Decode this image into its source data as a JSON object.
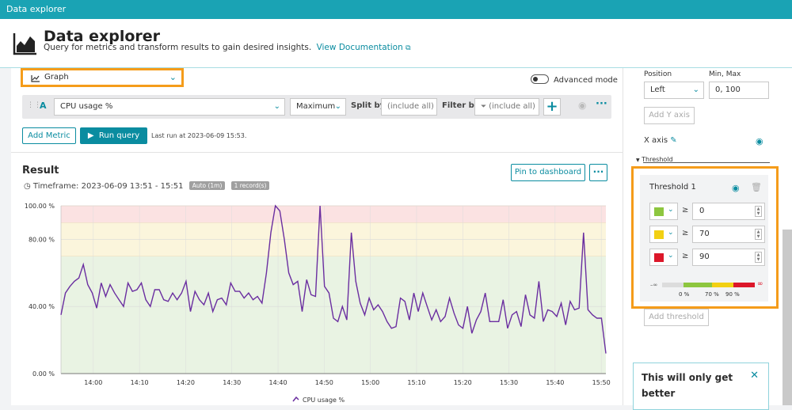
{
  "window": {
    "title": "Data explorer"
  },
  "header": {
    "title": "Data explorer",
    "subtitle": "Query for metrics and transform results to gain desired insights.",
    "doc_link": "View Documentation"
  },
  "visualization": {
    "selected": "Graph"
  },
  "advanced_mode": {
    "label": "Advanced mode",
    "enabled": false
  },
  "query": {
    "letter": "A",
    "metric": "CPU usage %",
    "aggregation": "Maximum",
    "split_by_label": "Split by",
    "split_by_placeholder": "(include all)",
    "filter_by_label": "Filter by",
    "filter_by_placeholder": "(include all)"
  },
  "actions": {
    "add_metric": "Add Metric",
    "run_query": "Run query",
    "last_run": "Last run at 2023-06-09 15:53."
  },
  "result": {
    "title": "Result",
    "timeframe": "Timeframe: 2023-06-09 13:51 - 15:51",
    "tag_resolution": "Auto (1m)",
    "tag_records": "1 record(s)",
    "pin_button": "Pin to dashboard",
    "more_button": "···"
  },
  "chart_data": {
    "type": "line",
    "title": "",
    "xlabel": "",
    "ylabel": "",
    "ylim": [
      0,
      100
    ],
    "ytick_labels": [
      "100.00 %",
      "80.00 %",
      "40.00 %",
      "0.00 %"
    ],
    "ytick_values": [
      100,
      80,
      40,
      0
    ],
    "x_start_min": 833,
    "x_end_min": 951,
    "xtick_labels": [
      "14:00",
      "14:10",
      "14:20",
      "14:30",
      "14:40",
      "14:50",
      "15:00",
      "15:10",
      "15:20",
      "15:30",
      "15:40",
      "15:50"
    ],
    "xtick_values": [
      840,
      850,
      860,
      870,
      880,
      890,
      900,
      910,
      920,
      930,
      940,
      950
    ],
    "threshold_bands": [
      {
        "from": 0,
        "to": 70,
        "color": "#e9f3e3"
      },
      {
        "from": 70,
        "to": 90,
        "color": "#fbf5dc"
      },
      {
        "from": 90,
        "to": 100,
        "color": "#fbe2e2"
      }
    ],
    "series": [
      {
        "name": "CPU usage %",
        "color": "#6a2ea0",
        "values": [
          35,
          48,
          52,
          55,
          57,
          65,
          53,
          48,
          39,
          54,
          46,
          53,
          48,
          44,
          40,
          54,
          49,
          50,
          54,
          44,
          40,
          50,
          50,
          44,
          43,
          48,
          44,
          48,
          55,
          37,
          49,
          44,
          41,
          48,
          37,
          44,
          45,
          41,
          54,
          49,
          49,
          45,
          48,
          44,
          46,
          42,
          60,
          84,
          100,
          97,
          80,
          60,
          53,
          55,
          37,
          56,
          47,
          46,
          100,
          52,
          48,
          33,
          31,
          40,
          32,
          84,
          55,
          42,
          35,
          45,
          38,
          41,
          37,
          31,
          27,
          28,
          45,
          43,
          32,
          48,
          37,
          48,
          40,
          32,
          38,
          31,
          34,
          45,
          36,
          29,
          27,
          40,
          24,
          32,
          37,
          48,
          31,
          31,
          31,
          44,
          27,
          35,
          37,
          28,
          47,
          35,
          33,
          55,
          31,
          38,
          37,
          34,
          42,
          29,
          43,
          38,
          39,
          84,
          38,
          35,
          33,
          33,
          12
        ]
      }
    ],
    "legend": "bottom-center",
    "grid": true
  },
  "sidebar": {
    "position_label": "Position",
    "position_value": "Left",
    "minmax_label": "Min, Max",
    "minmax_value": "0, 100",
    "add_y_axis": "Add Y axis",
    "x_axis_label": "X axis",
    "threshold_section": "Threshold",
    "threshold_title": "Threshold 1",
    "thresholds": [
      {
        "color": "#8dc63f",
        "value": "0"
      },
      {
        "color": "#f2d013",
        "value": "70"
      },
      {
        "color": "#dc172a",
        "value": "90"
      }
    ],
    "scale_labels": {
      "neg_inf": "–∞",
      "pos_inf": "∞",
      "zero": "0 %",
      "seventy": "70 %",
      "ninety": "90 %"
    },
    "add_threshold": "Add threshold",
    "promo_text": "This will only get better",
    "promo_close": "✕"
  },
  "colors": {
    "accent": "#0a8ca0",
    "highlight": "#f59c1a",
    "topbar": "#1aa3b4"
  }
}
